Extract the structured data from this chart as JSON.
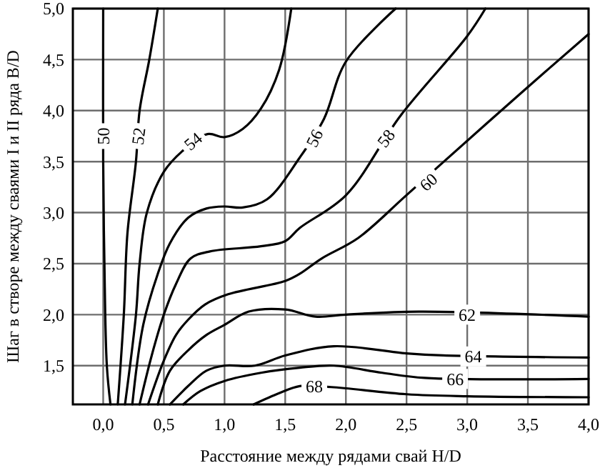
{
  "chart_data": {
    "type": "line",
    "xlabel": "Расстояние между рядами свай H/D",
    "ylabel": "Шаг в створе между сваями I и II ряда B/D",
    "xlim": [
      -0.25,
      4.0
    ],
    "ylim": [
      1.12,
      5.0
    ],
    "xticks": [
      {
        "value": 0,
        "label": "0,0"
      },
      {
        "value": 0.5,
        "label": "0,5"
      },
      {
        "value": 1,
        "label": "1,0"
      },
      {
        "value": 1.5,
        "label": "1,5"
      },
      {
        "value": 2,
        "label": "2,0"
      },
      {
        "value": 2.5,
        "label": "2,5"
      },
      {
        "value": 3,
        "label": "3,0"
      },
      {
        "value": 3.5,
        "label": "3,5"
      },
      {
        "value": 4,
        "label": "4,0"
      }
    ],
    "yticks": [
      {
        "value": 1.5,
        "label": "1,5"
      },
      {
        "value": 2,
        "label": "2,0"
      },
      {
        "value": 2.5,
        "label": "2,5"
      },
      {
        "value": 3,
        "label": "3,0"
      },
      {
        "value": 3.5,
        "label": "3,5"
      },
      {
        "value": 4,
        "label": "4,0"
      },
      {
        "value": 4.5,
        "label": "4,5"
      },
      {
        "value": 5,
        "label": "5,0"
      }
    ],
    "grid": true,
    "series": [
      {
        "color": "#000000",
        "x": [
          0.06,
          0.03,
          0.01,
          0.0,
          0.0
        ],
        "values": [
          1.12,
          1.5,
          2.5,
          3.5,
          5.0
        ]
      },
      {
        "color": "#000000",
        "x": [
          0.12,
          0.17,
          0.2,
          0.27,
          0.3,
          0.38,
          0.45
        ],
        "values": [
          1.12,
          2.0,
          2.8,
          3.5,
          4.0,
          4.5,
          5.0
        ]
      },
      {
        "color": "#000000",
        "x": [
          0.18,
          0.27,
          0.3,
          0.36,
          0.5,
          0.65,
          0.86,
          1.0,
          1.15,
          1.3,
          1.45,
          1.55
        ],
        "values": [
          1.12,
          2.0,
          2.5,
          3.0,
          3.4,
          3.6,
          3.77,
          3.74,
          3.82,
          4.02,
          4.4,
          5.0
        ]
      },
      {
        "color": "#000000",
        "x": [
          0.24,
          0.33,
          0.45,
          0.55,
          0.7,
          0.85,
          1.0,
          1.15,
          1.35,
          1.62,
          1.82,
          2.0,
          2.41
        ],
        "values": [
          1.12,
          1.9,
          2.4,
          2.7,
          2.95,
          3.04,
          3.06,
          3.05,
          3.13,
          3.54,
          3.92,
          4.48,
          5.0
        ]
      },
      {
        "color": "#000000",
        "x": [
          0.3,
          0.4,
          0.5,
          0.6,
          0.72,
          0.88,
          1.3,
          1.5,
          1.62,
          2.0,
          2.45,
          3.0,
          3.15
        ],
        "values": [
          1.12,
          1.6,
          2.0,
          2.3,
          2.55,
          2.62,
          2.67,
          2.72,
          2.85,
          3.17,
          3.95,
          4.73,
          5.0
        ]
      },
      {
        "color": "#000000",
        "x": [
          0.37,
          0.5,
          0.6,
          0.7,
          0.84,
          1.03,
          1.5,
          1.62,
          1.8,
          2.1,
          2.48,
          2.76,
          3.47,
          4.0
        ],
        "values": [
          1.12,
          1.55,
          1.8,
          1.95,
          2.1,
          2.2,
          2.33,
          2.4,
          2.55,
          2.75,
          3.15,
          3.45,
          4.2,
          4.75
        ]
      },
      {
        "color": "#000000",
        "x": [
          0.45,
          0.55,
          0.7,
          0.85,
          1.0,
          1.2,
          1.5,
          1.75,
          2.0,
          2.6,
          4.0
        ],
        "values": [
          1.12,
          1.45,
          1.65,
          1.8,
          1.9,
          2.03,
          2.05,
          1.98,
          2.0,
          2.03,
          1.98
        ]
      },
      {
        "color": "#000000",
        "x": [
          0.55,
          0.7,
          0.85,
          1.0,
          1.25,
          1.5,
          1.9,
          2.5,
          2.8,
          4.0
        ],
        "values": [
          1.12,
          1.3,
          1.45,
          1.5,
          1.5,
          1.6,
          1.69,
          1.62,
          1.6,
          1.58
        ]
      },
      {
        "color": "#000000",
        "x": [
          0.66,
          0.8,
          1.0,
          1.3,
          1.62,
          1.9,
          2.3,
          2.65,
          4.0
        ],
        "values": [
          1.12,
          1.25,
          1.35,
          1.43,
          1.48,
          1.5,
          1.43,
          1.38,
          1.37
        ]
      },
      {
        "color": "#000000",
        "x": [
          1.24,
          1.45,
          1.62,
          1.88,
          2.5,
          3.0,
          4.0
        ],
        "values": [
          1.12,
          1.23,
          1.3,
          1.29,
          1.22,
          1.2,
          1.19
        ]
      }
    ],
    "annotations": [
      {
        "text": "50",
        "x": 0.0,
        "y": 3.75
      },
      {
        "text": "52",
        "x": 0.29,
        "y": 3.75
      },
      {
        "text": "54",
        "x": 0.74,
        "y": 3.7
      },
      {
        "text": "56",
        "x": 1.74,
        "y": 3.73
      },
      {
        "text": "58",
        "x": 2.33,
        "y": 3.73
      },
      {
        "text": "60",
        "x": 2.68,
        "y": 3.3
      },
      {
        "text": "62",
        "x": 3.0,
        "y": 2.0
      },
      {
        "text": "64",
        "x": 3.05,
        "y": 1.59
      },
      {
        "text": "66",
        "x": 2.9,
        "y": 1.37
      },
      {
        "text": "68",
        "x": 1.74,
        "y": 1.3
      }
    ]
  }
}
